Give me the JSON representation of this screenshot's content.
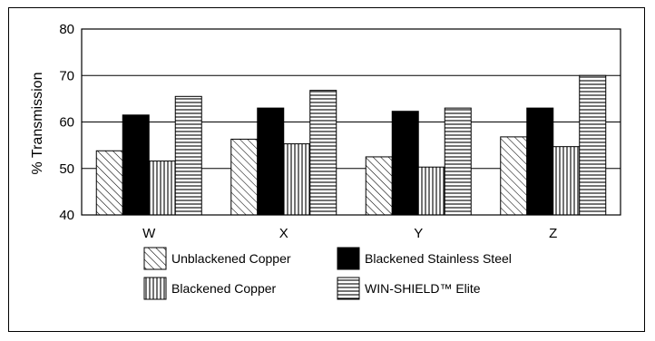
{
  "chart_data": {
    "type": "bar",
    "categories": [
      "W",
      "X",
      "Y",
      "Z"
    ],
    "series": [
      {
        "name": "Unblackened Copper",
        "pattern": "diagonal",
        "values": [
          53.8,
          56.3,
          52.5,
          56.8
        ]
      },
      {
        "name": "Blackened Stainless Steel",
        "pattern": "solid",
        "values": [
          61.5,
          63.0,
          62.3,
          63.0
        ]
      },
      {
        "name": "Blackened Copper",
        "pattern": "vertical",
        "values": [
          51.6,
          55.3,
          50.3,
          54.7
        ]
      },
      {
        "name": "WIN-SHIELD™ Elite",
        "pattern": "horizontal",
        "values": [
          65.5,
          66.8,
          63.0,
          70.0
        ]
      }
    ],
    "title": "",
    "xlabel": "",
    "ylabel": "% Transmission",
    "ylim": [
      40,
      80
    ],
    "yticks": [
      40,
      50,
      60,
      70,
      80
    ],
    "grid": "horizontal",
    "legend": "bottom",
    "colors": {
      "fill": "#000000",
      "background": "#ffffff"
    }
  }
}
